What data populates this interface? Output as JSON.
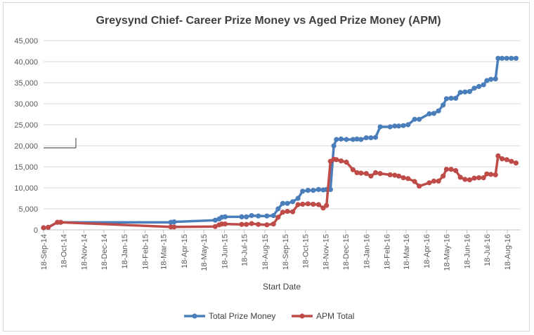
{
  "chart_data": {
    "type": "line",
    "title": "Greysynd Chief- Career Prize Money vs Aged Prize Money (APM)",
    "xlabel": "Start Date",
    "ylabel": "",
    "ylim": [
      0,
      45000
    ],
    "yticks": [
      "0",
      "5,000",
      "10,000",
      "15,000",
      "20,000",
      "25,000",
      "30,000",
      "35,000",
      "40,000",
      "45,000"
    ],
    "x_tick_labels": [
      "18-Sep-14",
      "18-Oct-14",
      "18-Nov-14",
      "18-Dec-14",
      "18-Jan-15",
      "18-Feb-15",
      "18-Mar-15",
      "18-Apr-15",
      "18-May-15",
      "18-Jun-15",
      "18-Jul-15",
      "18-Aug-15",
      "18-Sep-15",
      "18-Oct-15",
      "18-Nov-15",
      "18-Dec-15",
      "18-Jan-16",
      "18-Feb-16",
      "18-Mar-16",
      "18-Apr-16",
      "18-May-16",
      "18-Jun-16",
      "18-Jul-16",
      "18-Aug-16"
    ],
    "xlim": [
      "2014-09-18",
      "2016-09-07"
    ],
    "grid": true,
    "legend_position": "bottom",
    "series": [
      {
        "name": "Total Prize Money",
        "color": "#4a7ebb",
        "points": [
          [
            "2014-09-18",
            500
          ],
          [
            "2014-09-25",
            600
          ],
          [
            "2014-10-09",
            1800
          ],
          [
            "2014-10-14",
            1800
          ],
          [
            "2015-03-29",
            1800
          ],
          [
            "2015-04-03",
            1900
          ],
          [
            "2015-06-04",
            2300
          ],
          [
            "2015-06-10",
            2600
          ],
          [
            "2015-06-14",
            3000
          ],
          [
            "2015-06-19",
            3100
          ],
          [
            "2015-07-14",
            3100
          ],
          [
            "2015-07-21",
            3100
          ],
          [
            "2015-07-29",
            3400
          ],
          [
            "2015-08-08",
            3300
          ],
          [
            "2015-08-21",
            3300
          ],
          [
            "2015-08-31",
            3400
          ],
          [
            "2015-09-07",
            5000
          ],
          [
            "2015-09-14",
            6300
          ],
          [
            "2015-09-21",
            6300
          ],
          [
            "2015-09-29",
            6700
          ],
          [
            "2015-10-07",
            7500
          ],
          [
            "2015-10-14",
            9200
          ],
          [
            "2015-10-22",
            9400
          ],
          [
            "2015-10-30",
            9400
          ],
          [
            "2015-11-07",
            9600
          ],
          [
            "2015-11-14",
            9500
          ],
          [
            "2015-11-19",
            9600
          ],
          [
            "2015-11-25",
            9600
          ],
          [
            "2015-11-30",
            20000
          ],
          [
            "2015-12-04",
            21500
          ],
          [
            "2015-12-11",
            21600
          ],
          [
            "2015-12-19",
            21500
          ],
          [
            "2015-12-29",
            21500
          ],
          [
            "2016-01-04",
            21600
          ],
          [
            "2016-01-10",
            21500
          ],
          [
            "2016-01-18",
            21900
          ],
          [
            "2016-01-25",
            21900
          ],
          [
            "2016-02-01",
            22000
          ],
          [
            "2016-02-08",
            24500
          ],
          [
            "2016-02-23",
            24500
          ],
          [
            "2016-03-01",
            24700
          ],
          [
            "2016-03-07",
            24700
          ],
          [
            "2016-03-14",
            24800
          ],
          [
            "2016-03-21",
            25000
          ],
          [
            "2016-03-31",
            26300
          ],
          [
            "2016-04-07",
            26300
          ],
          [
            "2016-04-22",
            27600
          ],
          [
            "2016-04-29",
            27700
          ],
          [
            "2016-05-06",
            28300
          ],
          [
            "2016-05-13",
            29700
          ],
          [
            "2016-05-18",
            31200
          ],
          [
            "2016-05-25",
            31300
          ],
          [
            "2016-06-01",
            31300
          ],
          [
            "2016-06-08",
            32700
          ],
          [
            "2016-06-15",
            32800
          ],
          [
            "2016-06-22",
            32900
          ],
          [
            "2016-06-29",
            33700
          ],
          [
            "2016-07-06",
            34100
          ],
          [
            "2016-07-13",
            34500
          ],
          [
            "2016-07-18",
            35500
          ],
          [
            "2016-07-24",
            35800
          ],
          [
            "2016-07-31",
            35900
          ],
          [
            "2016-08-04",
            40800
          ],
          [
            "2016-08-10",
            40800
          ],
          [
            "2016-08-17",
            40800
          ],
          [
            "2016-08-24",
            40800
          ],
          [
            "2016-08-31",
            40800
          ]
        ]
      },
      {
        "name": "APM Total",
        "color": "#be4b48",
        "points": [
          [
            "2014-09-18",
            500
          ],
          [
            "2014-09-25",
            600
          ],
          [
            "2014-10-09",
            1800
          ],
          [
            "2014-10-14",
            1800
          ],
          [
            "2015-03-29",
            700
          ],
          [
            "2015-04-03",
            700
          ],
          [
            "2015-06-04",
            800
          ],
          [
            "2015-06-10",
            1200
          ],
          [
            "2015-06-14",
            1400
          ],
          [
            "2015-06-19",
            1400
          ],
          [
            "2015-07-14",
            1300
          ],
          [
            "2015-07-21",
            1300
          ],
          [
            "2015-07-29",
            1500
          ],
          [
            "2015-08-08",
            1300
          ],
          [
            "2015-08-21",
            1200
          ],
          [
            "2015-08-31",
            1400
          ],
          [
            "2015-09-07",
            3000
          ],
          [
            "2015-09-14",
            4200
          ],
          [
            "2015-09-21",
            4400
          ],
          [
            "2015-09-29",
            4300
          ],
          [
            "2015-10-07",
            6000
          ],
          [
            "2015-10-14",
            6100
          ],
          [
            "2015-10-22",
            6200
          ],
          [
            "2015-10-30",
            6100
          ],
          [
            "2015-11-07",
            6000
          ],
          [
            "2015-11-14",
            5200
          ],
          [
            "2015-11-19",
            5800
          ],
          [
            "2015-11-25",
            16300
          ],
          [
            "2015-11-30",
            16800
          ],
          [
            "2015-12-04",
            16700
          ],
          [
            "2015-12-11",
            16400
          ],
          [
            "2015-12-19",
            16100
          ],
          [
            "2015-12-29",
            14300
          ],
          [
            "2016-01-04",
            13600
          ],
          [
            "2016-01-10",
            13500
          ],
          [
            "2016-01-18",
            13400
          ],
          [
            "2016-01-25",
            12800
          ],
          [
            "2016-02-01",
            13600
          ],
          [
            "2016-02-08",
            13400
          ],
          [
            "2016-02-23",
            13100
          ],
          [
            "2016-03-01",
            13000
          ],
          [
            "2016-03-07",
            12800
          ],
          [
            "2016-03-14",
            12400
          ],
          [
            "2016-03-21",
            12200
          ],
          [
            "2016-03-31",
            11500
          ],
          [
            "2016-04-07",
            10400
          ],
          [
            "2016-04-22",
            11200
          ],
          [
            "2016-04-29",
            11600
          ],
          [
            "2016-05-06",
            11600
          ],
          [
            "2016-05-13",
            12800
          ],
          [
            "2016-05-18",
            14400
          ],
          [
            "2016-05-25",
            14400
          ],
          [
            "2016-06-01",
            14100
          ],
          [
            "2016-06-08",
            12500
          ],
          [
            "2016-06-15",
            12000
          ],
          [
            "2016-06-22",
            11900
          ],
          [
            "2016-06-29",
            12300
          ],
          [
            "2016-07-06",
            12400
          ],
          [
            "2016-07-13",
            12400
          ],
          [
            "2016-07-18",
            13300
          ],
          [
            "2016-07-24",
            13200
          ],
          [
            "2016-07-31",
            13100
          ],
          [
            "2016-08-04",
            17600
          ],
          [
            "2016-08-10",
            16900
          ],
          [
            "2016-08-17",
            16700
          ],
          [
            "2016-08-24",
            16300
          ],
          [
            "2016-08-31",
            15900
          ]
        ]
      }
    ]
  }
}
